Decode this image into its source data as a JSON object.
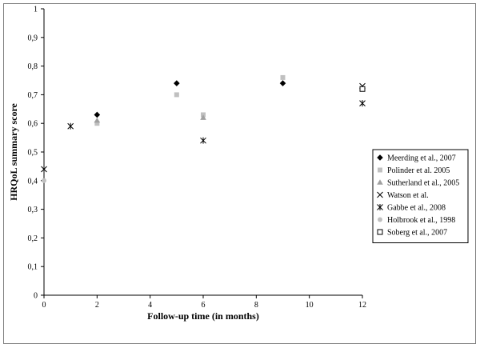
{
  "chart_data": {
    "type": "scatter",
    "xlabel": "Follow-up time (in months)",
    "ylabel": "HRQoL summary score",
    "xlim": [
      0,
      12
    ],
    "ylim": [
      0,
      1
    ],
    "x_ticks": [
      0,
      2,
      4,
      6,
      8,
      10,
      12
    ],
    "y_ticks": [
      0,
      0.1,
      0.2,
      0.3,
      0.4,
      0.5,
      0.6,
      0.7,
      0.8,
      0.9,
      1
    ],
    "x_tick_labels": [
      "0",
      "2",
      "4",
      "6",
      "8",
      "10",
      "12"
    ],
    "y_tick_labels": [
      "0",
      "0,1",
      "0,2",
      "0,3",
      "0,4",
      "0,5",
      "0,6",
      "0,7",
      "0,8",
      "0,9",
      "1"
    ],
    "grid": false,
    "legend_position": "right",
    "series": [
      {
        "name": "Meerding et al., 2007",
        "marker": "diamond",
        "color": "#000000",
        "points": [
          [
            2,
            0.63
          ],
          [
            5,
            0.74
          ],
          [
            9,
            0.74
          ]
        ]
      },
      {
        "name": "Polinder et al. 2005",
        "marker": "square",
        "color": "#c0c0c0",
        "points": [
          [
            2,
            0.6
          ],
          [
            5,
            0.7
          ],
          [
            6,
            0.63
          ],
          [
            9,
            0.76
          ]
        ]
      },
      {
        "name": "Sutherland et al., 2005",
        "marker": "triangle",
        "color": "#a0a0a0",
        "points": [
          [
            2,
            0.61
          ],
          [
            6,
            0.62
          ]
        ]
      },
      {
        "name": "Watson et al.",
        "marker": "x",
        "color": "#000000",
        "points": [
          [
            12,
            0.73
          ]
        ]
      },
      {
        "name": "Gabbe et al., 2008",
        "marker": "asterisk",
        "color": "#000000",
        "points": [
          [
            0,
            0.44
          ],
          [
            1,
            0.59
          ],
          [
            6,
            0.54
          ],
          [
            12,
            0.67
          ]
        ]
      },
      {
        "name": "Holbrook et al.,  1998",
        "marker": "circle",
        "color": "#c0c0c0",
        "points": [
          [
            0,
            0.4
          ]
        ]
      },
      {
        "name": "Soberg et al., 2007",
        "marker": "open-square",
        "color": "#000000",
        "points": [
          [
            12,
            0.72
          ]
        ]
      }
    ]
  }
}
